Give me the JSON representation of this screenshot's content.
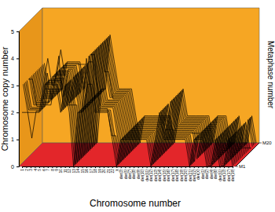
{
  "chart_data": {
    "type": "line",
    "x_label": "Chromosome number",
    "y_label": "Chromosome copy number",
    "z_label": "Metaphase number",
    "color": "#000000",
    "categories": [
      "1",
      "2",
      "3",
      "4",
      "5",
      "6",
      "7",
      "8",
      "9",
      "10",
      "11",
      "12",
      "13",
      "14",
      "15",
      "16",
      "17",
      "18",
      "19",
      "20",
      "21",
      "22",
      "X",
      "der(3)",
      "der(5)",
      "der(7)",
      "der(8)",
      "der(9)",
      "der(10)",
      "der(11)",
      "der(12)",
      "der(13)",
      "der(14)",
      "der(15)",
      "der(16)",
      "der(17)",
      "der(18)",
      "der(19)",
      "der(20)",
      "der(21)",
      "der(22)",
      "der(X)",
      "der(1)",
      "der(2)",
      "der(4)",
      "der(6)",
      "der(11)",
      "der(13)",
      "der(17)",
      "der(19)"
    ],
    "ylim": [
      0,
      5
    ],
    "yticks": [
      0,
      1,
      2,
      3,
      4,
      5
    ],
    "zlim": [
      1,
      20
    ],
    "zticks": [
      {
        "value": 1,
        "label": "M1"
      },
      {
        "value": 20,
        "label": "M20"
      }
    ],
    "series": [
      {
        "metaphase": 1,
        "values": [
          2,
          2,
          2,
          2,
          2,
          3,
          4,
          3,
          3,
          2,
          3,
          2,
          0,
          2,
          2,
          4,
          3,
          2,
          2,
          2,
          2,
          1,
          0,
          1,
          1,
          1,
          1,
          1,
          1,
          1,
          0,
          1,
          2,
          1,
          1,
          1,
          1,
          1,
          1,
          0,
          1,
          1,
          1,
          0,
          0,
          1,
          0,
          0,
          1,
          0
        ]
      },
      {
        "metaphase": 2,
        "values": [
          3,
          2,
          1,
          2,
          2,
          3,
          3,
          3,
          3,
          2,
          3,
          2,
          0,
          2,
          2,
          3,
          3,
          2,
          2,
          2,
          2,
          1,
          0,
          1,
          1,
          1,
          1,
          1,
          1,
          1,
          0,
          1,
          2,
          1,
          1,
          1,
          1,
          1,
          1,
          0,
          1,
          1,
          1,
          0,
          0,
          1,
          0,
          0,
          1,
          0
        ]
      },
      {
        "metaphase": 3,
        "values": [
          3,
          2,
          2,
          2,
          2,
          3,
          3,
          3,
          4,
          2,
          3,
          2,
          0,
          2,
          2,
          4,
          3,
          2,
          2,
          2,
          2,
          1,
          0,
          1,
          1,
          1,
          1,
          1,
          1,
          1,
          0,
          1,
          2,
          1,
          1,
          1,
          1,
          1,
          1,
          0,
          1,
          1,
          1,
          0,
          0,
          1,
          0,
          0,
          1,
          0
        ]
      },
      {
        "metaphase": 4,
        "values": [
          3,
          2,
          2,
          2,
          2,
          3,
          3,
          3,
          3,
          2,
          3,
          2,
          0,
          2,
          2,
          4,
          4,
          2,
          2,
          2,
          1,
          1,
          0,
          1,
          1,
          1,
          1,
          1,
          1,
          1,
          0,
          1,
          2,
          1,
          1,
          1,
          1,
          1,
          1,
          0,
          1,
          1,
          1,
          0,
          0,
          1,
          0,
          0,
          1,
          0
        ]
      },
      {
        "metaphase": 5,
        "values": [
          3,
          2,
          2,
          2,
          2,
          3,
          3,
          3,
          3,
          2,
          3,
          2,
          0,
          2,
          2,
          4,
          3,
          2,
          2,
          2,
          2,
          1,
          0,
          1,
          1,
          1,
          1,
          1,
          1,
          1,
          0,
          1,
          2,
          1,
          1,
          1,
          1,
          1,
          1,
          0,
          1,
          1,
          1,
          0,
          0,
          1,
          0,
          0,
          1,
          0
        ]
      },
      {
        "metaphase": 6,
        "values": [
          3,
          3,
          2,
          2,
          2,
          3,
          3,
          3,
          3,
          2,
          3,
          2,
          0,
          2,
          2,
          4,
          3,
          2,
          2,
          2,
          2,
          1,
          0,
          1,
          1,
          1,
          1,
          1,
          1,
          1,
          0,
          1,
          2,
          1,
          1,
          1,
          1,
          1,
          1,
          1,
          1,
          1,
          1,
          0,
          0,
          1,
          0,
          0,
          1,
          0
        ]
      },
      {
        "metaphase": 7,
        "values": [
          3,
          2,
          2,
          2,
          2,
          2,
          3,
          3,
          3,
          2,
          2,
          2,
          0,
          2,
          2,
          4,
          3,
          2,
          2,
          2,
          2,
          1,
          0,
          1,
          1,
          1,
          1,
          1,
          1,
          1,
          0,
          1,
          2,
          1,
          1,
          1,
          1,
          1,
          1,
          0,
          1,
          1,
          1,
          0,
          0,
          1,
          0,
          0,
          1,
          0
        ]
      },
      {
        "metaphase": 8,
        "values": [
          3,
          2,
          2,
          2,
          2,
          3,
          3,
          4,
          3,
          2,
          3,
          2,
          0,
          2,
          2,
          4,
          3,
          2,
          2,
          2,
          2,
          1,
          0,
          1,
          1,
          1,
          1,
          1,
          1,
          1,
          0,
          1,
          2,
          1,
          1,
          1,
          1,
          1,
          1,
          0,
          1,
          1,
          1,
          0,
          0,
          1,
          0,
          0,
          1,
          0
        ]
      },
      {
        "metaphase": 9,
        "values": [
          3,
          2,
          2,
          2,
          2,
          3,
          3,
          3,
          3,
          2,
          3,
          2,
          0,
          2,
          2,
          4,
          3,
          2,
          2,
          2,
          2,
          1,
          0,
          1,
          1,
          1,
          1,
          1,
          1,
          1,
          0,
          1,
          1,
          1,
          1,
          1,
          1,
          1,
          1,
          0,
          1,
          1,
          1,
          0,
          0,
          1,
          0,
          0,
          1,
          0
        ]
      },
      {
        "metaphase": 10,
        "values": [
          3,
          2,
          2,
          2,
          2,
          3,
          3,
          3,
          3,
          2,
          3,
          2,
          0,
          2,
          2,
          4,
          3,
          2,
          2,
          2,
          2,
          1,
          0,
          1,
          1,
          1,
          1,
          1,
          1,
          1,
          0,
          1,
          2,
          1,
          1,
          1,
          1,
          1,
          1,
          0,
          1,
          1,
          1,
          0,
          0,
          1,
          0,
          0,
          1,
          0
        ]
      },
      {
        "metaphase": 11,
        "values": [
          3,
          2,
          2,
          3,
          2,
          3,
          3,
          3,
          3,
          2,
          3,
          2,
          0,
          2,
          2,
          4,
          3,
          2,
          2,
          2,
          2,
          1,
          0,
          1,
          1,
          1,
          1,
          1,
          1,
          1,
          0,
          1,
          2,
          1,
          1,
          1,
          1,
          1,
          1,
          0,
          1,
          1,
          1,
          0,
          0,
          1,
          0,
          0,
          1,
          0
        ]
      },
      {
        "metaphase": 12,
        "values": [
          3,
          2,
          2,
          2,
          2,
          3,
          3,
          3,
          3,
          2,
          3,
          2,
          0,
          2,
          2,
          4,
          3,
          3,
          2,
          2,
          2,
          1,
          0,
          1,
          1,
          1,
          1,
          1,
          1,
          1,
          0,
          1,
          2,
          1,
          1,
          1,
          1,
          1,
          1,
          0,
          1,
          1,
          1,
          0,
          0,
          1,
          0,
          0,
          1,
          0
        ]
      },
      {
        "metaphase": 13,
        "values": [
          3,
          2,
          2,
          2,
          2,
          3,
          3,
          3,
          3,
          2,
          3,
          2,
          0,
          2,
          2,
          4,
          3,
          2,
          2,
          2,
          2,
          1,
          0,
          1,
          1,
          1,
          1,
          1,
          1,
          1,
          0,
          1,
          2,
          1,
          1,
          1,
          1,
          1,
          1,
          0,
          1,
          1,
          1,
          0,
          0,
          1,
          0,
          0,
          1,
          0
        ]
      },
      {
        "metaphase": 14,
        "values": [
          3,
          2,
          2,
          2,
          2,
          3,
          2,
          3,
          3,
          2,
          3,
          2,
          0,
          2,
          2,
          4,
          3,
          2,
          2,
          2,
          2,
          1,
          0,
          1,
          1,
          1,
          1,
          1,
          1,
          1,
          0,
          1,
          2,
          1,
          1,
          1,
          1,
          1,
          1,
          0,
          1,
          1,
          1,
          0,
          0,
          1,
          0,
          0,
          1,
          0
        ]
      },
      {
        "metaphase": 15,
        "values": [
          3,
          2,
          2,
          2,
          2,
          3,
          3,
          3,
          3,
          2,
          3,
          2,
          0,
          2,
          2,
          4,
          3,
          2,
          2,
          2,
          2,
          1,
          0,
          1,
          1,
          1,
          1,
          1,
          1,
          1,
          0,
          1,
          2,
          1,
          1,
          1,
          1,
          1,
          1,
          0,
          1,
          1,
          1,
          0,
          0,
          1,
          0,
          0,
          1,
          0
        ]
      },
      {
        "metaphase": 16,
        "values": [
          3,
          2,
          2,
          2,
          2,
          3,
          3,
          3,
          3,
          2,
          3,
          2,
          0,
          2,
          2,
          4,
          3,
          2,
          2,
          2,
          2,
          1,
          0,
          1,
          1,
          1,
          1,
          1,
          1,
          1,
          0,
          1,
          2,
          1,
          1,
          1,
          1,
          1,
          1,
          0,
          1,
          1,
          1,
          0,
          0,
          1,
          0,
          0,
          0,
          0
        ]
      },
      {
        "metaphase": 17,
        "values": [
          3,
          2,
          2,
          2,
          2,
          3,
          3,
          3,
          3,
          2,
          3,
          2,
          0,
          2,
          2,
          4,
          3,
          2,
          2,
          2,
          2,
          1,
          0,
          1,
          1,
          1,
          1,
          1,
          1,
          1,
          0,
          1,
          2,
          1,
          1,
          1,
          1,
          1,
          1,
          0,
          1,
          1,
          1,
          0,
          0,
          1,
          0,
          0,
          1,
          0
        ]
      },
      {
        "metaphase": 18,
        "values": [
          3,
          2,
          2,
          2,
          2,
          3,
          3,
          3,
          3,
          3,
          3,
          2,
          0,
          2,
          2,
          4,
          3,
          2,
          2,
          2,
          2,
          1,
          0,
          1,
          1,
          1,
          1,
          1,
          1,
          1,
          0,
          1,
          2,
          1,
          1,
          1,
          1,
          1,
          1,
          0,
          1,
          1,
          1,
          0,
          0,
          1,
          0,
          0,
          1,
          0
        ]
      },
      {
        "metaphase": 19,
        "values": [
          3,
          2,
          2,
          2,
          2,
          3,
          3,
          3,
          3,
          2,
          3,
          2,
          0,
          2,
          2,
          4,
          3,
          2,
          2,
          2,
          2,
          1,
          0,
          1,
          1,
          1,
          1,
          1,
          1,
          1,
          0,
          1,
          2,
          1,
          1,
          1,
          1,
          1,
          1,
          0,
          1,
          1,
          1,
          0,
          0,
          1,
          0,
          0,
          1,
          0
        ]
      },
      {
        "metaphase": 20,
        "values": [
          2,
          2,
          2,
          2,
          2,
          3,
          3,
          3,
          3,
          2,
          3,
          3,
          0,
          2,
          2,
          4,
          3,
          2,
          2,
          2,
          2,
          1,
          0,
          1,
          1,
          1,
          1,
          1,
          1,
          1,
          0,
          1,
          2,
          1,
          1,
          1,
          1,
          1,
          1,
          0,
          1,
          1,
          1,
          0,
          0,
          1,
          0,
          0,
          1,
          0
        ]
      }
    ]
  }
}
